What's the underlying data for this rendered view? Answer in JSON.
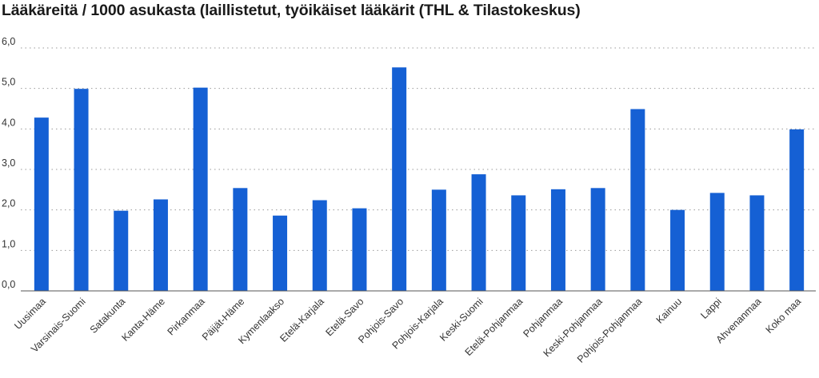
{
  "chart_data": {
    "type": "bar",
    "title": "Lääkäreitä / 1000 asukasta (laillistetut, työikäiset lääkärit (THL & Tilastokeskus)",
    "xlabel": "",
    "ylabel": "",
    "ylim": [
      0,
      6
    ],
    "yticks": [
      "0,0",
      "1,0",
      "2,0",
      "3,0",
      "4,0",
      "5,0",
      "6,0"
    ],
    "grid": true,
    "bar_color": "#1560d4",
    "categories": [
      "Uusimaa",
      "Varsinais-Suomi",
      "Satakunta",
      "Kanta-Häme",
      "Pirkanmaa",
      "Päijät-Häme",
      "Kymenlaakso",
      "Etelä-Karjala",
      "Etelä-Savo",
      "Pohjois-Savo",
      "Pohjois-Karjala",
      "Keski-Suomi",
      "Etelä-Pohjanmaa",
      "Pohjanmaa",
      "Keski-Pohjanmaa",
      "Pohjois-Pohjanmaa",
      "Kainuu",
      "Lappi",
      "Ahvenanmaa",
      "Koko maa"
    ],
    "values": [
      4.28,
      4.99,
      1.98,
      2.26,
      5.02,
      2.54,
      1.86,
      2.24,
      2.04,
      5.52,
      2.5,
      2.88,
      2.36,
      2.51,
      2.54,
      4.49,
      2.0,
      2.42,
      2.36,
      3.99
    ]
  }
}
